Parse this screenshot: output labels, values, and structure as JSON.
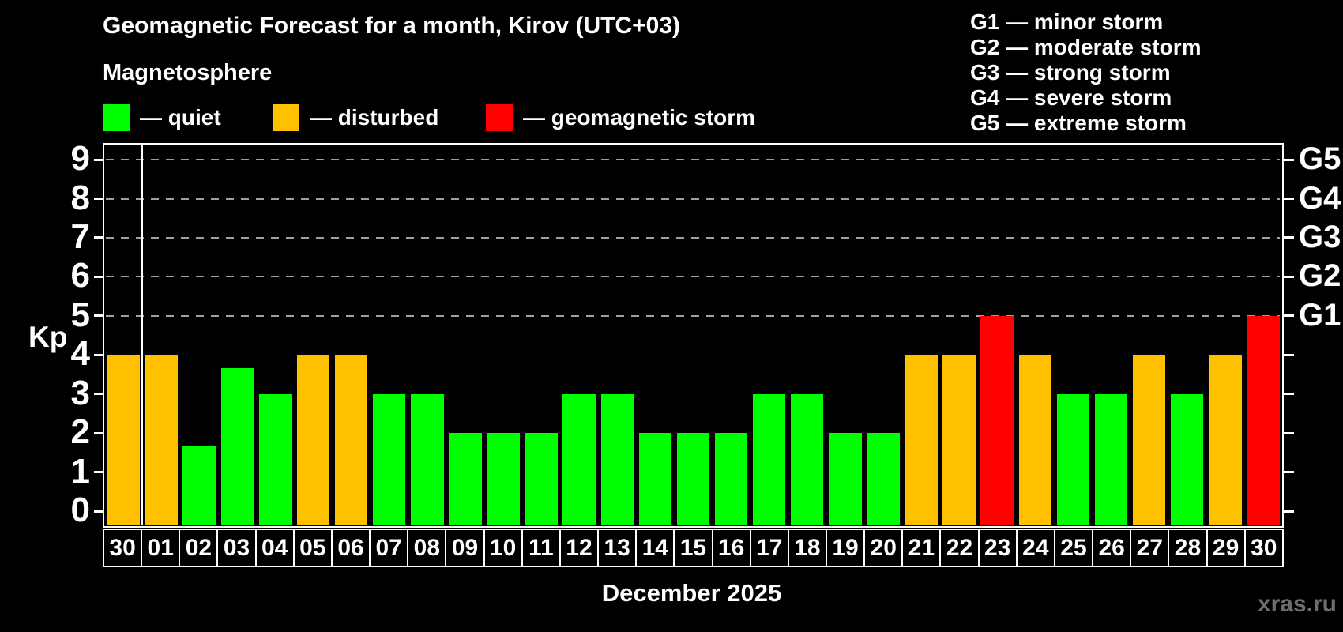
{
  "header": {
    "title": "Geomagnetic Forecast for a month, Kirov (UTC+03)",
    "subtitle": "Magnetosphere"
  },
  "legend": {
    "items": [
      {
        "key": "quiet",
        "label": "— quiet",
        "color": "#00ff00"
      },
      {
        "key": "disturbed",
        "label": "— disturbed",
        "color": "#ffc000"
      },
      {
        "key": "storm",
        "label": "— geomagnetic storm",
        "color": "#ff0000"
      }
    ]
  },
  "storm_scale_legend": {
    "items": [
      "G1 — minor storm",
      "G2 — moderate storm",
      "G3 — strong storm",
      "G4 — severe storm",
      "G5 — extreme storm"
    ]
  },
  "footer": {
    "xaxis_title": "December 2025",
    "watermark": "xras.ru"
  },
  "chart_data": {
    "type": "bar",
    "title": "Geomagnetic Forecast for a month, Kirov (UTC+03)",
    "xlabel": "December 2025",
    "ylabel": "Kp",
    "ylim": [
      0,
      9
    ],
    "yticks": [
      0,
      1,
      2,
      3,
      4,
      5,
      6,
      7,
      8,
      9
    ],
    "grid_values": [
      5,
      6,
      7,
      8,
      9
    ],
    "grid_style": "dashed",
    "legend_position": "top",
    "right_axis": [
      {
        "value": 5,
        "label": "G1"
      },
      {
        "value": 6,
        "label": "G2"
      },
      {
        "value": 7,
        "label": "G3"
      },
      {
        "value": 8,
        "label": "G4"
      },
      {
        "value": 9,
        "label": "G5"
      }
    ],
    "status_colors": {
      "quiet": "#00ff00",
      "disturbed": "#ffc000",
      "storm": "#ff0000"
    },
    "month_separator_after_index": 0,
    "bars": [
      {
        "day": "30",
        "kp": 4,
        "status": "disturbed"
      },
      {
        "day": "01",
        "kp": 4,
        "status": "disturbed"
      },
      {
        "day": "02",
        "kp": 1.67,
        "status": "quiet"
      },
      {
        "day": "03",
        "kp": 3.67,
        "status": "quiet"
      },
      {
        "day": "04",
        "kp": 3,
        "status": "quiet"
      },
      {
        "day": "05",
        "kp": 4,
        "status": "disturbed"
      },
      {
        "day": "06",
        "kp": 4,
        "status": "disturbed"
      },
      {
        "day": "07",
        "kp": 3,
        "status": "quiet"
      },
      {
        "day": "08",
        "kp": 3,
        "status": "quiet"
      },
      {
        "day": "09",
        "kp": 2,
        "status": "quiet"
      },
      {
        "day": "10",
        "kp": 2,
        "status": "quiet"
      },
      {
        "day": "11",
        "kp": 2,
        "status": "quiet"
      },
      {
        "day": "12",
        "kp": 3,
        "status": "quiet"
      },
      {
        "day": "13",
        "kp": 3,
        "status": "quiet"
      },
      {
        "day": "14",
        "kp": 2,
        "status": "quiet"
      },
      {
        "day": "15",
        "kp": 2,
        "status": "quiet"
      },
      {
        "day": "16",
        "kp": 2,
        "status": "quiet"
      },
      {
        "day": "17",
        "kp": 3,
        "status": "quiet"
      },
      {
        "day": "18",
        "kp": 3,
        "status": "quiet"
      },
      {
        "day": "19",
        "kp": 2,
        "status": "quiet"
      },
      {
        "day": "20",
        "kp": 2,
        "status": "quiet"
      },
      {
        "day": "21",
        "kp": 4,
        "status": "disturbed"
      },
      {
        "day": "22",
        "kp": 4,
        "status": "disturbed"
      },
      {
        "day": "23",
        "kp": 5,
        "status": "storm"
      },
      {
        "day": "24",
        "kp": 4,
        "status": "disturbed"
      },
      {
        "day": "25",
        "kp": 3,
        "status": "quiet"
      },
      {
        "day": "26",
        "kp": 3,
        "status": "quiet"
      },
      {
        "day": "27",
        "kp": 4,
        "status": "disturbed"
      },
      {
        "day": "28",
        "kp": 3,
        "status": "quiet"
      },
      {
        "day": "29",
        "kp": 4,
        "status": "disturbed"
      },
      {
        "day": "30",
        "kp": 5,
        "status": "storm"
      }
    ]
  }
}
